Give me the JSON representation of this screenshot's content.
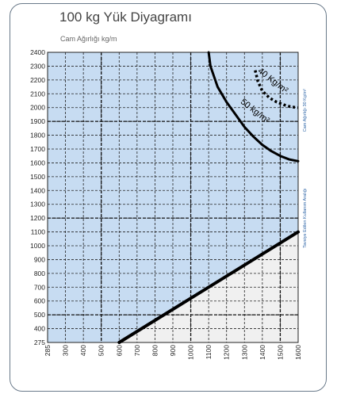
{
  "header": {
    "title": "100 kg Yük Diyagramı",
    "subtitle": "Cam Ağırlığı kg/m"
  },
  "chart_data": {
    "type": "line",
    "title": "100 kg Yük Diyagramı",
    "subtitle": "Cam Ağırlığı kg/m",
    "x_ticks": [
      "285",
      "300",
      "400",
      "500",
      "600",
      "700",
      "800",
      "900",
      "1000",
      "1100",
      "1200",
      "1300",
      "1400",
      "1500",
      "1600"
    ],
    "y_ticks": [
      "275",
      "400",
      "500",
      "600",
      "700",
      "800",
      "900",
      "1000",
      "1100",
      "1200",
      "1300",
      "1400",
      "1500",
      "1600",
      "1700",
      "1800",
      "1900",
      "2000",
      "2100",
      "2200",
      "2300",
      "2400"
    ],
    "xlim": [
      285,
      1600
    ],
    "ylim": [
      275,
      2400
    ],
    "grid": true,
    "regions": [
      {
        "name": "blue",
        "color": "#c7dcf2"
      },
      {
        "name": "grey",
        "color": "#f0f0f0"
      }
    ],
    "series": [
      {
        "name": "50 kg/m²",
        "style": "solid",
        "x": [
          1100,
          1110,
          1150,
          1200,
          1250,
          1300,
          1350,
          1400,
          1450,
          1500,
          1550,
          1600
        ],
        "y": [
          2400,
          2300,
          2150,
          2040,
          1950,
          1860,
          1790,
          1730,
          1685,
          1650,
          1625,
          1612
        ]
      },
      {
        "name": "40 kg/m²",
        "style": "dotted",
        "x": [
          1360,
          1375,
          1400,
          1440,
          1480,
          1520,
          1560,
          1600
        ],
        "y": [
          2270,
          2190,
          2120,
          2070,
          2040,
          2020,
          2005,
          2000
        ]
      },
      {
        "name": "Tavsiye Edilen Kullanım Aralığı",
        "style": "solid",
        "x": [
          600,
          1600
        ],
        "y": [
          275,
          1100
        ]
      }
    ],
    "annotations": [
      {
        "text": "40 Kg/m²",
        "x": 1450,
        "y": 2180,
        "rotate": 38
      },
      {
        "text": "50 kg/m²",
        "x": 1350,
        "y": 1960,
        "rotate": 38
      },
      {
        "text": "Cam Ağırlığı 30 Kg/m²",
        "side": "right",
        "y": 1980
      },
      {
        "text": "Tavsiye Edilen Kullanım Aralığı",
        "side": "right",
        "y": 1200
      }
    ],
    "colors": {
      "blue_region": "#c7dcf2",
      "grey_region": "#f0f0f0",
      "curve": "#000000",
      "accent": "#2f66a8"
    }
  }
}
